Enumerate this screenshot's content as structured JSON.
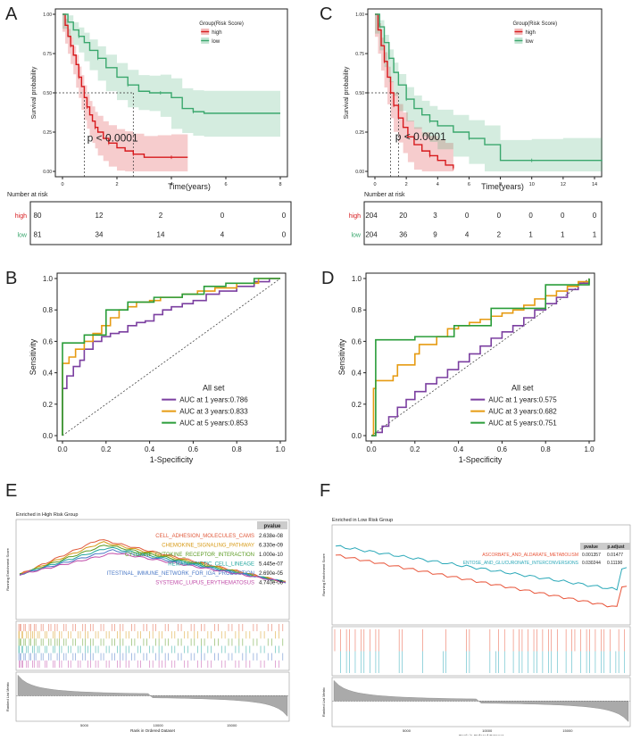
{
  "colors": {
    "high": "#d7191c",
    "low": "#3aa76d",
    "auc1": "#7b3fa0",
    "auc3": "#e69b12",
    "auc5": "#2a9d3a",
    "gseaBlue": "#3c8fc4",
    "gseaRed": "#e8553a"
  },
  "chart_data": [
    {
      "id": "A",
      "type": "line",
      "panel_label": "A",
      "subtype": "kaplan-meier",
      "xlabel": "Time(years)",
      "ylabel": "Survival probability",
      "xlim": [
        0,
        8
      ],
      "ylim": [
        0,
        1
      ],
      "xticks": [
        "0",
        "2",
        "4",
        "6",
        "8"
      ],
      "yticks": [
        "0.00",
        "0.25",
        "0.50",
        "0.75",
        "1.00"
      ],
      "legend": {
        "title": "Group(Risk Score)",
        "entries": [
          "high",
          "low"
        ],
        "placement": "top-right"
      },
      "pvalue": "p < 0.0001",
      "series": [
        {
          "name": "high",
          "x": [
            0,
            0.1,
            0.2,
            0.3,
            0.4,
            0.5,
            0.6,
            0.7,
            0.8,
            0.9,
            1.0,
            1.1,
            1.2,
            1.3,
            1.5,
            1.7,
            2.0,
            2.3,
            2.6,
            3.0,
            3.5,
            4.0,
            4.6
          ],
          "y": [
            1.0,
            0.93,
            0.86,
            0.8,
            0.74,
            0.68,
            0.6,
            0.54,
            0.47,
            0.41,
            0.36,
            0.32,
            0.28,
            0.25,
            0.21,
            0.18,
            0.15,
            0.13,
            0.11,
            0.09,
            0.09,
            0.09,
            0.09
          ]
        },
        {
          "name": "low",
          "x": [
            0,
            0.2,
            0.4,
            0.6,
            0.8,
            1.0,
            1.3,
            1.6,
            2.0,
            2.4,
            2.8,
            3.2,
            3.6,
            4.0,
            4.4,
            4.8,
            5.2,
            8.0
          ],
          "y": [
            1.0,
            0.95,
            0.9,
            0.86,
            0.82,
            0.77,
            0.72,
            0.66,
            0.6,
            0.55,
            0.51,
            0.5,
            0.5,
            0.47,
            0.4,
            0.38,
            0.37,
            0.37
          ]
        }
      ],
      "risk_table": {
        "title": "Number at risk",
        "groups": [
          "high",
          "low"
        ],
        "rows": [
          [
            "80",
            "12",
            "2",
            "0",
            "0"
          ],
          [
            "81",
            "34",
            "14",
            "4",
            "0"
          ]
        ]
      }
    },
    {
      "id": "C",
      "type": "line",
      "panel_label": "C",
      "subtype": "kaplan-meier",
      "xlabel": "Time(years)",
      "ylabel": "Survival probability",
      "xlim": [
        0,
        14
      ],
      "ylim": [
        0,
        1
      ],
      "xticks": [
        "0",
        "2",
        "4",
        "6",
        "8",
        "10",
        "12",
        "14"
      ],
      "yticks": [
        "0.00",
        "0.25",
        "0.50",
        "0.75",
        "1.00"
      ],
      "legend": {
        "title": "Group(Risk Score)",
        "entries": [
          "high",
          "low"
        ],
        "placement": "top-right"
      },
      "pvalue": "p < 0.0001",
      "series": [
        {
          "name": "high",
          "x": [
            0,
            0.2,
            0.4,
            0.6,
            0.8,
            1.0,
            1.2,
            1.5,
            1.8,
            2.1,
            2.5,
            3.0,
            3.5,
            4.0,
            4.5,
            5.0
          ],
          "y": [
            1.0,
            0.9,
            0.8,
            0.7,
            0.6,
            0.5,
            0.42,
            0.34,
            0.28,
            0.22,
            0.17,
            0.13,
            0.1,
            0.07,
            0.04,
            0.02
          ]
        },
        {
          "name": "low",
          "x": [
            0,
            0.3,
            0.6,
            0.9,
            1.2,
            1.5,
            2.0,
            2.5,
            3.0,
            3.5,
            4.0,
            5.0,
            6.0,
            7.0,
            8.0,
            10.0,
            12.0,
            14.5
          ],
          "y": [
            1.0,
            0.92,
            0.82,
            0.72,
            0.63,
            0.55,
            0.46,
            0.4,
            0.36,
            0.32,
            0.29,
            0.25,
            0.21,
            0.17,
            0.07,
            0.07,
            0.07,
            0.07
          ]
        }
      ],
      "risk_table": {
        "title": "Number at risk",
        "groups": [
          "high",
          "low"
        ],
        "rows": [
          [
            "204",
            "20",
            "3",
            "0",
            "0",
            "0",
            "0",
            "0"
          ],
          [
            "204",
            "36",
            "9",
            "4",
            "2",
            "1",
            "1",
            "1"
          ]
        ]
      }
    },
    {
      "id": "B",
      "type": "line",
      "panel_label": "B",
      "subtype": "roc",
      "xlabel": "1-Specificity",
      "ylabel": "Sensitivity",
      "xlim": [
        0,
        1
      ],
      "ylim": [
        0,
        1
      ],
      "xticks": [
        "0.0",
        "0.2",
        "0.4",
        "0.6",
        "0.8",
        "1.0"
      ],
      "yticks": [
        "0.0",
        "0.2",
        "0.4",
        "0.6",
        "0.8",
        "1.0"
      ],
      "legend": {
        "title": "All set",
        "placement": "bottom-right",
        "entries": [
          "AUC at 1 years:0.786",
          "AUC at 3 years:0.833",
          "AUC at 5 years:0.853"
        ]
      },
      "series": [
        {
          "name": "AUC at 1 years:0.786",
          "x": [
            0,
            0,
            0.02,
            0.05,
            0.08,
            0.1,
            0.14,
            0.18,
            0.22,
            0.26,
            0.3,
            0.34,
            0.38,
            0.42,
            0.46,
            0.5,
            0.55,
            0.6,
            0.66,
            0.72,
            0.8,
            0.88,
            0.95,
            1.0
          ],
          "y": [
            0,
            0.3,
            0.38,
            0.44,
            0.48,
            0.55,
            0.6,
            0.63,
            0.65,
            0.66,
            0.7,
            0.72,
            0.73,
            0.77,
            0.8,
            0.82,
            0.84,
            0.86,
            0.9,
            0.92,
            0.95,
            0.98,
            1.0,
            1.0
          ]
        },
        {
          "name": "AUC at 3 years:0.833",
          "x": [
            0,
            0,
            0.03,
            0.06,
            0.1,
            0.14,
            0.18,
            0.22,
            0.26,
            0.3,
            0.34,
            0.4,
            0.45,
            0.5,
            0.55,
            0.62,
            0.7,
            0.8,
            0.9,
            1.0
          ],
          "y": [
            0,
            0.46,
            0.5,
            0.55,
            0.6,
            0.65,
            0.7,
            0.75,
            0.8,
            0.82,
            0.85,
            0.86,
            0.88,
            0.88,
            0.9,
            0.92,
            0.94,
            0.97,
            1.0,
            1.0
          ]
        },
        {
          "name": "AUC at 5 years:0.853",
          "x": [
            0,
            0,
            0.1,
            0.1,
            0.2,
            0.2,
            0.3,
            0.3,
            0.42,
            0.42,
            0.55,
            0.55,
            0.65,
            0.65,
            0.75,
            0.75,
            0.88,
            0.88,
            1.0
          ],
          "y": [
            0,
            0.59,
            0.59,
            0.64,
            0.64,
            0.8,
            0.8,
            0.85,
            0.85,
            0.88,
            0.88,
            0.9,
            0.9,
            0.95,
            0.95,
            0.97,
            0.97,
            1.0,
            1.0
          ]
        }
      ]
    },
    {
      "id": "D",
      "type": "line",
      "panel_label": "D",
      "subtype": "roc",
      "xlabel": "1-Specificity",
      "ylabel": "Sensitivity",
      "xlim": [
        0,
        1
      ],
      "ylim": [
        0,
        1
      ],
      "xticks": [
        "0.0",
        "0.2",
        "0.4",
        "0.6",
        "0.8",
        "1.0"
      ],
      "yticks": [
        "0.0",
        "0.2",
        "0.4",
        "0.6",
        "0.8",
        "1.0"
      ],
      "legend": {
        "title": "All set",
        "placement": "bottom-right",
        "entries": [
          "AUC at 1 years:0.575",
          "AUC at 3 years:0.682",
          "AUC at 5 years:0.751"
        ]
      },
      "series": [
        {
          "name": "AUC at 1 years:0.575",
          "x": [
            0,
            0.02,
            0.05,
            0.08,
            0.12,
            0.16,
            0.2,
            0.25,
            0.3,
            0.35,
            0.4,
            0.45,
            0.5,
            0.55,
            0.6,
            0.65,
            0.7,
            0.75,
            0.8,
            0.85,
            0.9,
            0.95,
            1.0
          ],
          "y": [
            0,
            0.02,
            0.06,
            0.12,
            0.18,
            0.23,
            0.28,
            0.33,
            0.37,
            0.42,
            0.47,
            0.52,
            0.57,
            0.62,
            0.66,
            0.7,
            0.75,
            0.8,
            0.84,
            0.88,
            0.93,
            0.97,
            1.0
          ]
        },
        {
          "name": "AUC at 3 years:0.682",
          "x": [
            0,
            0.01,
            0.02,
            0.1,
            0.12,
            0.2,
            0.22,
            0.3,
            0.35,
            0.4,
            0.45,
            0.5,
            0.55,
            0.6,
            0.65,
            0.7,
            0.75,
            0.8,
            0.85,
            0.9,
            0.95,
            1.0
          ],
          "y": [
            0,
            0.3,
            0.35,
            0.38,
            0.45,
            0.52,
            0.58,
            0.63,
            0.68,
            0.7,
            0.72,
            0.74,
            0.76,
            0.78,
            0.8,
            0.83,
            0.87,
            0.89,
            0.92,
            0.95,
            0.98,
            1.0
          ]
        },
        {
          "name": "AUC at 5 years:0.751",
          "x": [
            0,
            0.02,
            0.02,
            0.2,
            0.2,
            0.38,
            0.38,
            0.55,
            0.55,
            0.8,
            0.8,
            1.0,
            1.0
          ],
          "y": [
            0,
            0.06,
            0.61,
            0.61,
            0.63,
            0.63,
            0.7,
            0.7,
            0.81,
            0.81,
            0.96,
            0.96,
            1.0
          ]
        }
      ]
    },
    {
      "id": "E",
      "type": "line",
      "panel_label": "E",
      "subtype": "gsea",
      "title": "Enriched in High Risk Group",
      "ylabel": "Running Enrichment Score",
      "ylabel2": "Ranked List Metric",
      "xlabel": "Rank in Ordered Dataset",
      "xticks": [
        "5000",
        "10000",
        "15000"
      ],
      "table_header": "pvalue",
      "pathways": [
        {
          "name": "CELL_ADHESION_MOLECULES_CAMS",
          "pvalue": "2.638e-08",
          "color": "#e05a3c"
        },
        {
          "name": "CHEMOKINE_SIGNALING_PATHWAY",
          "pvalue": "6.330e-09",
          "color": "#d79a16"
        },
        {
          "name": "CYTOKINE_CYTOKINE_RECEPTOR_INTERACTION",
          "pvalue": "1.000e-10",
          "color": "#5a9a22"
        },
        {
          "name": "HEMATOPOIETIC_CELL_LINEAGE",
          "pvalue": "5.445e-07",
          "color": "#1fa59c"
        },
        {
          "name": "ITESTINAL_IMMUNE_NETWORK_FOR_IGA_PRODUCTION",
          "pvalue": "2.690e-05",
          "color": "#4a78c6"
        },
        {
          "name": "SYSTEMIC_LUPUS_ERYTHEMATOSUS",
          "pvalue": "4.740e-06",
          "color": "#c04ba8"
        }
      ]
    },
    {
      "id": "F",
      "type": "line",
      "panel_label": "F",
      "subtype": "gsea",
      "title": "Enriched in Low Risk Group",
      "ylabel": "Running Enrichment Score",
      "ylabel2": "Ranked List Metric",
      "xlabel": "Rank in Ordered Dataset",
      "xticks": [
        "5000",
        "10000",
        "15000"
      ],
      "table_header": [
        "pvalue",
        "p.adjust"
      ],
      "pathways": [
        {
          "name": "ASCORBATE_AND_ALDARATE_METABOLISM",
          "pvalue": "0.001357",
          "padjust": "0.01477",
          "color": "#e8553a"
        },
        {
          "name": "ENTOSE_AND_GLUCURONATE_INTERCONVERSIONS",
          "pvalue": "0.030244",
          "padjust": "0.11190",
          "color": "#2aa8b8"
        }
      ]
    }
  ]
}
